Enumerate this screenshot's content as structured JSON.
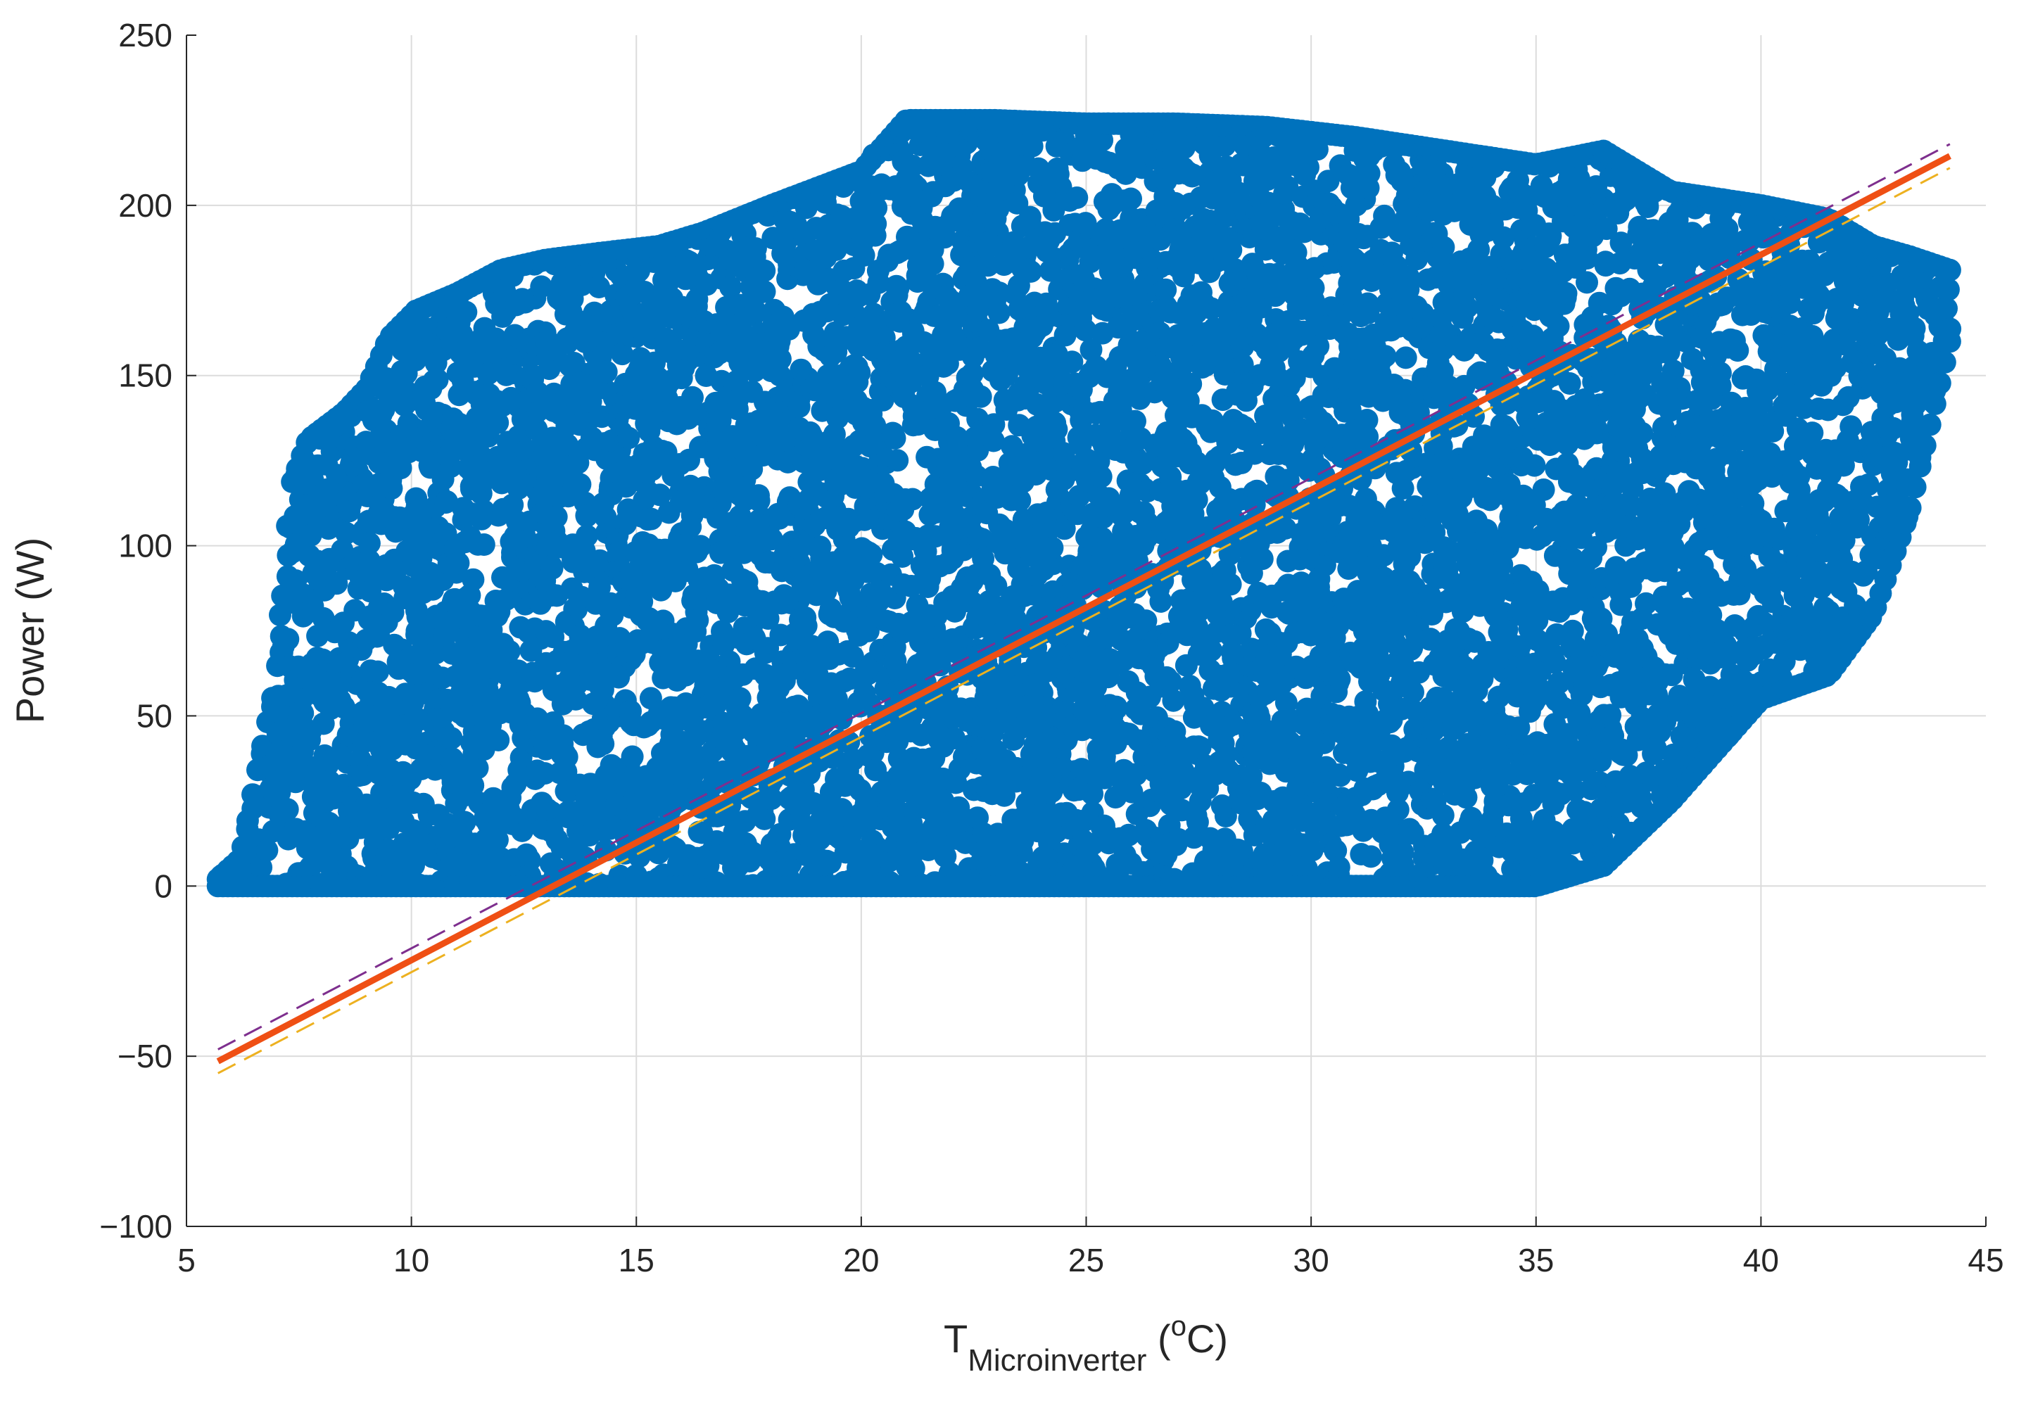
{
  "chart_data": {
    "type": "scatter",
    "xlabel": {
      "main": "T",
      "subscript": "Microinverter",
      "unit_open": " (",
      "unit_sup": "o",
      "unit_rest": "C)"
    },
    "ylabel": "Power (W)",
    "xlim": [
      5,
      45
    ],
    "ylim": [
      -100,
      250
    ],
    "xticks": [
      5,
      10,
      15,
      20,
      25,
      30,
      35,
      40,
      45
    ],
    "yticks": [
      -100,
      -50,
      0,
      50,
      100,
      150,
      200,
      250
    ],
    "xtick_labels": [
      "5",
      "10",
      "15",
      "20",
      "25",
      "30",
      "35",
      "40",
      "45"
    ],
    "ytick_labels": [
      "−100",
      "−50",
      "0",
      "50",
      "100",
      "150",
      "200",
      "250"
    ],
    "grid": true,
    "colors": {
      "scatter": "#0072BD",
      "fit": "#EF4F14",
      "upper_bound": "#7E2F8E",
      "lower_bound": "#EDB120",
      "grid": "#dcdcdc",
      "axis": "#262626"
    },
    "envelope_samples": [
      {
        "x": 5.7,
        "ymin": 0,
        "ymax": 2
      },
      {
        "x": 6.2,
        "ymin": 0,
        "ymax": 8
      },
      {
        "x": 6.5,
        "ymin": 0,
        "ymax": 29
      },
      {
        "x": 7.0,
        "ymin": 0,
        "ymax": 61
      },
      {
        "x": 7.3,
        "ymin": 0,
        "ymax": 117
      },
      {
        "x": 7.7,
        "ymin": 0,
        "ymax": 131
      },
      {
        "x": 8.5,
        "ymin": 0,
        "ymax": 139
      },
      {
        "x": 9.0,
        "ymin": 0,
        "ymax": 146
      },
      {
        "x": 9.5,
        "ymin": 0,
        "ymax": 161
      },
      {
        "x": 10.1,
        "ymin": 0,
        "ymax": 169
      },
      {
        "x": 11.0,
        "ymin": 0,
        "ymax": 174
      },
      {
        "x": 12.0,
        "ymin": 0,
        "ymax": 181
      },
      {
        "x": 13.0,
        "ymin": 0,
        "ymax": 184
      },
      {
        "x": 14.2,
        "ymin": 0,
        "ymax": 186
      },
      {
        "x": 15.5,
        "ymin": 0,
        "ymax": 188
      },
      {
        "x": 16.5,
        "ymin": 0,
        "ymax": 192
      },
      {
        "x": 18.0,
        "ymin": 0,
        "ymax": 200
      },
      {
        "x": 20.0,
        "ymin": 0,
        "ymax": 210
      },
      {
        "x": 21.0,
        "ymin": 0,
        "ymax": 225
      },
      {
        "x": 23.0,
        "ymin": 0,
        "ymax": 225
      },
      {
        "x": 25.0,
        "ymin": 0,
        "ymax": 224
      },
      {
        "x": 27.0,
        "ymin": 0,
        "ymax": 224
      },
      {
        "x": 29.0,
        "ymin": 0,
        "ymax": 223
      },
      {
        "x": 31.0,
        "ymin": 0,
        "ymax": 220
      },
      {
        "x": 33.0,
        "ymin": 0,
        "ymax": 216
      },
      {
        "x": 35.0,
        "ymin": 0,
        "ymax": 212
      },
      {
        "x": 36.5,
        "ymin": 6,
        "ymax": 216
      },
      {
        "x": 38.0,
        "ymin": 25,
        "ymax": 204
      },
      {
        "x": 40.0,
        "ymin": 55,
        "ymax": 200
      },
      {
        "x": 41.5,
        "ymin": 62,
        "ymax": 196
      },
      {
        "x": 42.5,
        "ymin": 80,
        "ymax": 188
      },
      {
        "x": 43.3,
        "ymin": 110,
        "ymax": 185
      },
      {
        "x": 44.2,
        "ymin": 160,
        "ymax": 181
      }
    ],
    "fit_line": {
      "x": [
        5.7,
        44.2
      ],
      "y": [
        -51.5,
        214.5
      ]
    },
    "upper_bound_line": {
      "x": [
        5.7,
        44.2
      ],
      "y": [
        -48,
        218
      ]
    },
    "lower_bound_line": {
      "x": [
        5.7,
        44.2
      ],
      "y": [
        -55,
        211
      ]
    }
  }
}
